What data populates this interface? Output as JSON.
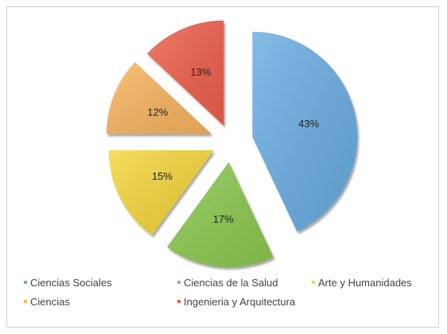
{
  "chart_data": {
    "type": "pie",
    "categories": [
      "Ciencias Sociales",
      "Ciencias de la Salud",
      "Arte y Humanidades",
      "Ciencias",
      "Ingenieria y Arquitectura"
    ],
    "values": [
      43,
      17,
      15,
      12,
      13
    ],
    "labels": [
      "43%",
      "17%",
      "15%",
      "12%",
      "13%"
    ],
    "colors": [
      "#6aaee2",
      "#8cc94f",
      "#f5d63b",
      "#f9b55e",
      "#ef5f4b"
    ],
    "exploded": true,
    "legend_position": "bottom"
  },
  "legend": {
    "items": [
      {
        "label": "Ciencias Sociales",
        "color": "#6aaee2"
      },
      {
        "label": "Ciencias de la Salud",
        "color": "#8cc94f"
      },
      {
        "label": "Arte y Humanidades",
        "color": "#f5d63b"
      },
      {
        "label": "Ciencias",
        "color": "#f9b55e"
      },
      {
        "label": "Ingenieria y Arquitectura",
        "color": "#ef5f4b"
      }
    ]
  }
}
